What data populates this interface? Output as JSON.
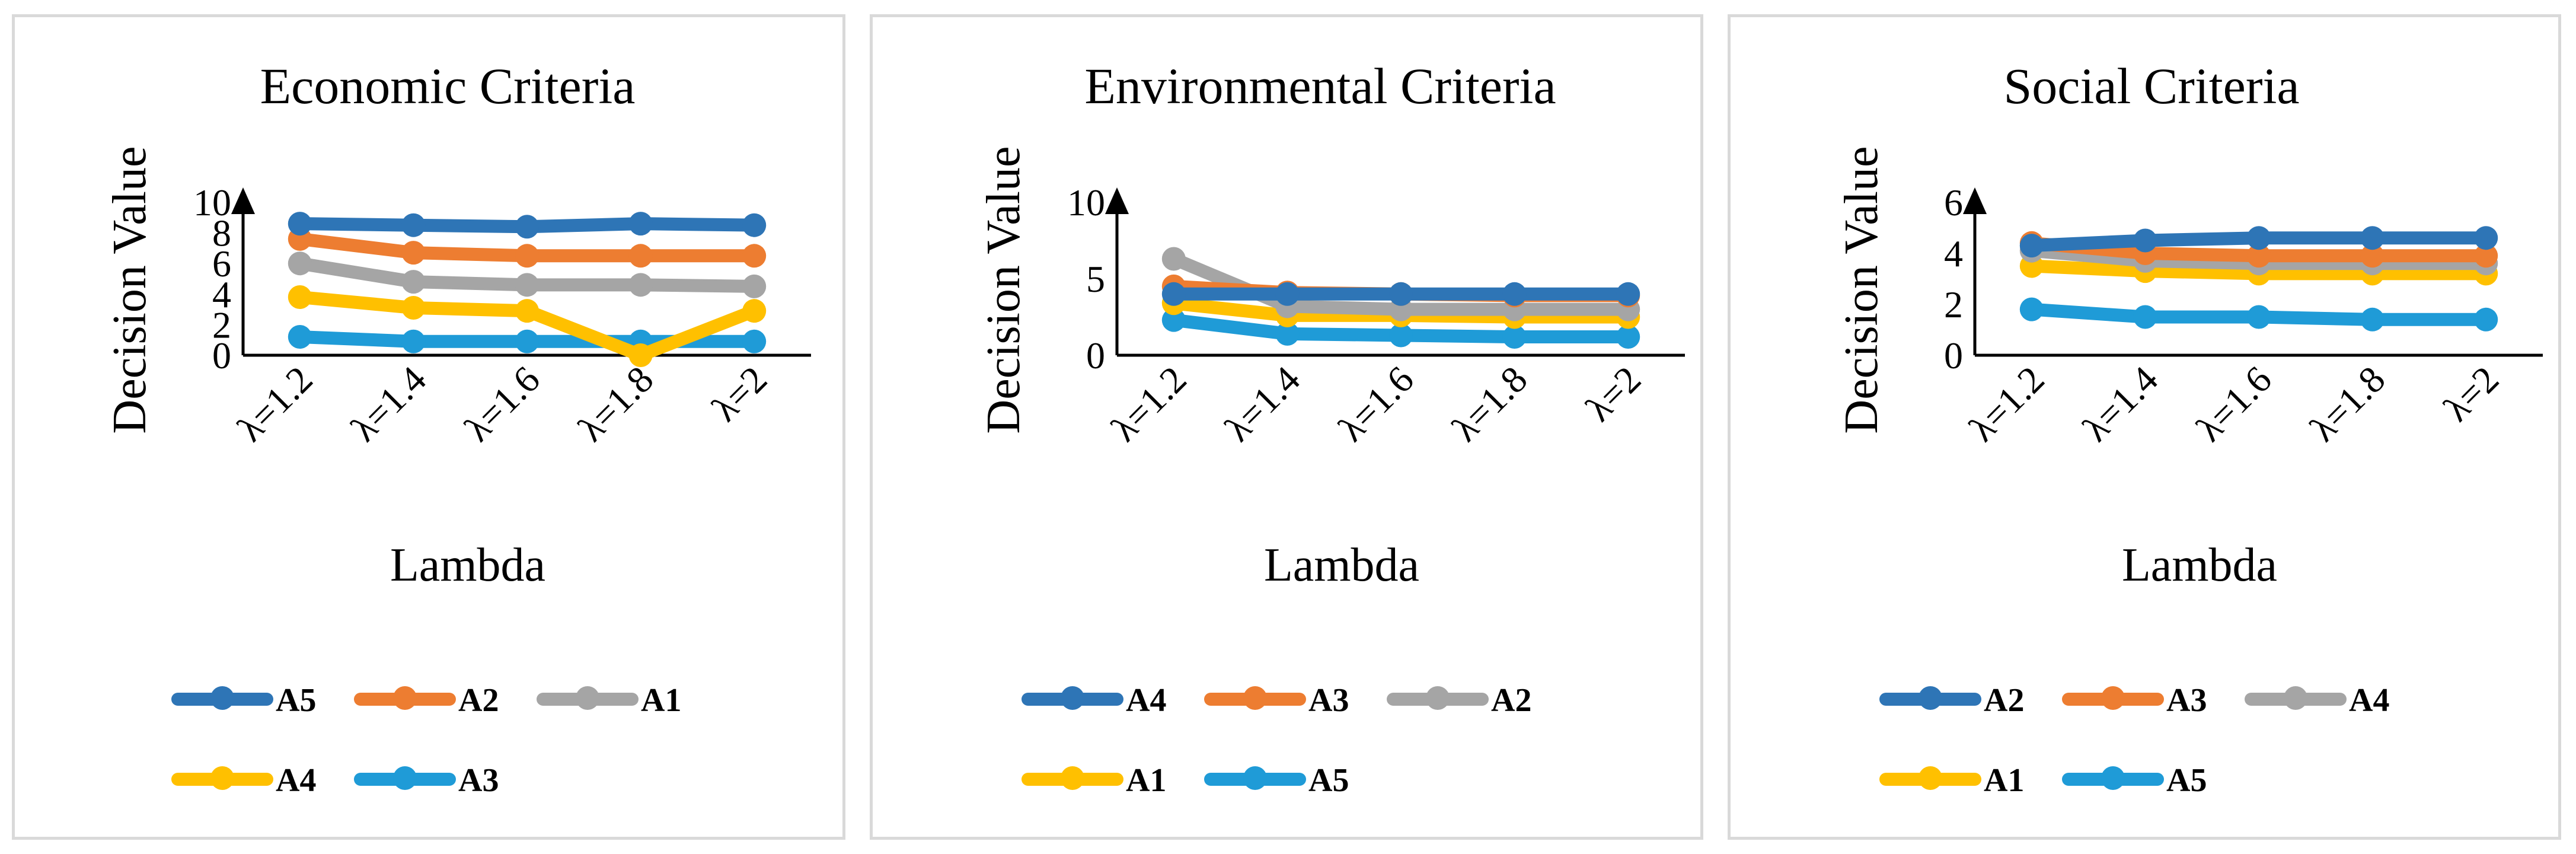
{
  "chart_data": [
    {
      "type": "line",
      "title": "Economic Criteria",
      "xlabel": "Lambda",
      "ylabel": "Decision Value",
      "categories": [
        "λ=1.2",
        "λ=1.4",
        "λ=1.6",
        "λ=1.8",
        "λ=2"
      ],
      "ylim": [
        0,
        10
      ],
      "yticks": [
        "0",
        "2",
        "4",
        "6",
        "8",
        "10"
      ],
      "series": [
        {
          "name": "A5",
          "color": "#2e75b6",
          "values": [
            8.6,
            8.5,
            8.4,
            8.6,
            8.5
          ]
        },
        {
          "name": "A2",
          "color": "#ed7d31",
          "values": [
            7.6,
            6.7,
            6.5,
            6.5,
            6.5
          ]
        },
        {
          "name": "A1",
          "color": "#a5a5a5",
          "values": [
            6.0,
            4.8,
            4.6,
            4.6,
            4.5
          ]
        },
        {
          "name": "A4",
          "color": "#ffc000",
          "values": [
            3.8,
            3.1,
            2.9,
            0.0,
            2.9
          ]
        },
        {
          "name": "A3",
          "color": "#1f9bd7",
          "values": [
            1.2,
            0.9,
            0.9,
            0.9,
            0.9
          ]
        }
      ]
    },
    {
      "type": "line",
      "title": "Environmental Criteria",
      "xlabel": "Lambda",
      "ylabel": "Decision Value",
      "categories": [
        "λ=1.2",
        "λ=1.4",
        "λ=1.6",
        "λ=1.8",
        "λ=2"
      ],
      "ylim": [
        0,
        10
      ],
      "yticks": [
        "0",
        "5",
        "10"
      ],
      "series": [
        {
          "name": "A4",
          "color": "#2e75b6",
          "values": [
            4.0,
            4.0,
            4.0,
            4.0,
            4.0
          ]
        },
        {
          "name": "A3",
          "color": "#ed7d31",
          "values": [
            4.5,
            4.1,
            4.0,
            3.9,
            3.9
          ]
        },
        {
          "name": "A2",
          "color": "#a5a5a5",
          "values": [
            6.3,
            3.2,
            3.0,
            3.0,
            3.0
          ]
        },
        {
          "name": "A1",
          "color": "#ffc000",
          "values": [
            3.4,
            2.6,
            2.6,
            2.5,
            2.5
          ]
        },
        {
          "name": "A5",
          "color": "#1f9bd7",
          "values": [
            2.3,
            1.4,
            1.3,
            1.2,
            1.2
          ]
        }
      ]
    },
    {
      "type": "line",
      "title": "Social Criteria",
      "xlabel": "Lambda",
      "ylabel": "Decision Value",
      "categories": [
        "λ=1.2",
        "λ=1.4",
        "λ=1.6",
        "λ=1.8",
        "λ=2"
      ],
      "ylim": [
        0,
        6
      ],
      "yticks": [
        "0",
        "2",
        "4",
        "6"
      ],
      "series": [
        {
          "name": "A2",
          "color": "#2e75b6",
          "values": [
            4.3,
            4.5,
            4.6,
            4.6,
            4.6
          ]
        },
        {
          "name": "A3",
          "color": "#ed7d31",
          "values": [
            4.4,
            4.0,
            3.9,
            3.9,
            3.9
          ]
        },
        {
          "name": "A4",
          "color": "#a5a5a5",
          "values": [
            4.1,
            3.7,
            3.6,
            3.6,
            3.6
          ]
        },
        {
          "name": "A1",
          "color": "#ffc000",
          "values": [
            3.5,
            3.3,
            3.2,
            3.2,
            3.2
          ]
        },
        {
          "name": "A5",
          "color": "#1f9bd7",
          "values": [
            1.8,
            1.5,
            1.5,
            1.4,
            1.4
          ]
        }
      ]
    }
  ]
}
